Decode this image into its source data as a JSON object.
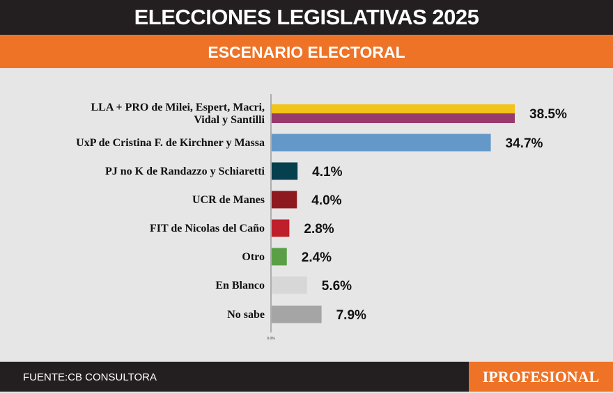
{
  "header": {
    "title": "ELECCIONES LEGISLATIVAS 2025",
    "subtitle": "ESCENARIO ELECTORAL"
  },
  "footer": {
    "source": "FUENTE:CB CONSULTORA",
    "logo": "IPROFESIONAL"
  },
  "chart_data": {
    "type": "bar",
    "orientation": "horizontal",
    "xlim": [
      0,
      38.5
    ],
    "x_tick_label": "0.0%",
    "grid": false,
    "categories": [
      [
        "LLA + PRO de Milei, Espert, Macri,",
        "Vidal y Santilli"
      ],
      [
        "UxP de Cristina F. de Kirchner y Massa"
      ],
      [
        "PJ no K de Randazzo y Schiaretti"
      ],
      [
        "UCR de Manes"
      ],
      [
        "FIT de Nicolas del Caño"
      ],
      [
        "Otro"
      ],
      [
        "En Blanco"
      ],
      [
        "No sabe"
      ]
    ],
    "values": [
      38.5,
      34.7,
      4.1,
      4.0,
      2.8,
      2.4,
      5.6,
      7.9
    ],
    "value_labels": [
      "38.5%",
      "34.7%",
      "4.1%",
      "4.0%",
      "2.8%",
      "2.4%",
      "5.6%",
      "7.9%"
    ],
    "colors": [
      [
        "#f2c318",
        "#983a6b"
      ],
      [
        "#6398c9"
      ],
      [
        "#063f4e"
      ],
      [
        "#8e1a1f"
      ],
      [
        "#bf1f2a"
      ],
      [
        "#5a9f45"
      ],
      [
        "#d7d7d7"
      ],
      [
        "#a5a5a5"
      ]
    ]
  }
}
